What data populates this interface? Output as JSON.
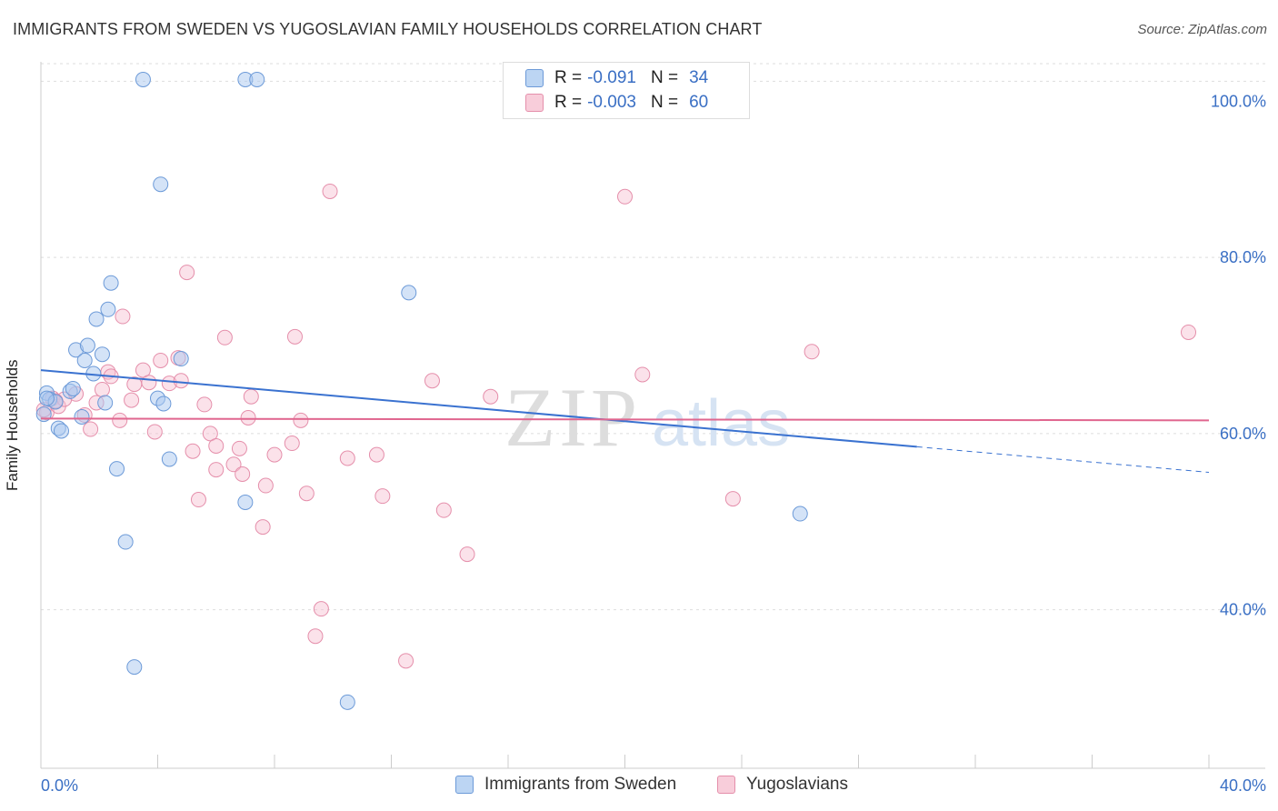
{
  "header": {
    "title": "IMMIGRANTS FROM SWEDEN VS YUGOSLAVIAN FAMILY HOUSEHOLDS CORRELATION CHART",
    "source": "Source: ZipAtlas.com"
  },
  "watermark": {
    "zip": "ZIP",
    "atlas": "atlas"
  },
  "legend": {
    "rows": [
      {
        "r_label": "R =",
        "r_value": "-0.091",
        "n_label": "N =",
        "n_value": "34"
      },
      {
        "r_label": "R =",
        "r_value": "-0.003",
        "n_label": "N =",
        "n_value": "60"
      }
    ]
  },
  "bottom_legend": {
    "series_a": "Immigrants from Sweden",
    "series_b": "Yugoslavians"
  },
  "chart_data": {
    "type": "scatter",
    "title": "IMMIGRANTS FROM SWEDEN VS YUGOSLAVIAN FAMILY HOUSEHOLDS CORRELATION CHART",
    "xlabel": "",
    "ylabel": "Family Households",
    "xlim": [
      0,
      40
    ],
    "ylim": [
      22,
      102
    ],
    "x_tick_labels": [
      "0.0%",
      "40.0%"
    ],
    "y_ticks": [
      40,
      60,
      80,
      100
    ],
    "y_tick_labels": [
      "40.0%",
      "60.0%",
      "80.0%",
      "100.0%"
    ],
    "grid": true,
    "legend_position": "top-center",
    "colors": {
      "sweden_fill": "#a9c8f0",
      "sweden_stroke": "#6c9ad8",
      "sweden_line": "#3a72d0",
      "yugo_fill": "#f6bfd0",
      "yugo_stroke": "#e58fab",
      "yugo_line": "#e0668f",
      "tick_text": "#3a6fc4"
    },
    "series": [
      {
        "name": "Immigrants from Sweden",
        "r": -0.091,
        "n": 34,
        "trend": {
          "x0": 0,
          "y0": 67.2,
          "x1": 30,
          "y1": 58.5,
          "dash_to_x": 40,
          "dash_to_y": 55.6
        },
        "points": [
          [
            0.1,
            62.2
          ],
          [
            0.2,
            64.6
          ],
          [
            0.3,
            63.9
          ],
          [
            0.5,
            63.6
          ],
          [
            0.6,
            60.6
          ],
          [
            0.7,
            60.3
          ],
          [
            1.0,
            64.8
          ],
          [
            1.1,
            65.1
          ],
          [
            1.2,
            69.5
          ],
          [
            1.4,
            61.9
          ],
          [
            1.5,
            68.3
          ],
          [
            1.6,
            70.0
          ],
          [
            1.8,
            66.8
          ],
          [
            1.9,
            73.0
          ],
          [
            2.1,
            69.0
          ],
          [
            2.2,
            63.5
          ],
          [
            2.3,
            74.1
          ],
          [
            2.4,
            77.1
          ],
          [
            2.6,
            56.0
          ],
          [
            2.9,
            47.7
          ],
          [
            3.2,
            33.5
          ],
          [
            3.5,
            100.2
          ],
          [
            4.0,
            64.0
          ],
          [
            4.1,
            88.3
          ],
          [
            4.2,
            63.4
          ],
          [
            4.4,
            57.1
          ],
          [
            4.8,
            68.5
          ],
          [
            7.0,
            100.2
          ],
          [
            7.4,
            100.2
          ],
          [
            7.0,
            52.2
          ],
          [
            10.5,
            29.5
          ],
          [
            12.6,
            76.0
          ],
          [
            26.0,
            50.9
          ],
          [
            0.2,
            64.0
          ]
        ]
      },
      {
        "name": "Yugoslavians",
        "r": -0.003,
        "n": 60,
        "trend": {
          "x0": 0,
          "y0": 61.7,
          "x1": 40,
          "y1": 61.5
        },
        "points": [
          [
            0.2,
            62.4
          ],
          [
            0.4,
            64.0
          ],
          [
            0.6,
            63.1
          ],
          [
            0.8,
            63.9
          ],
          [
            1.2,
            64.5
          ],
          [
            1.5,
            62.1
          ],
          [
            1.7,
            60.5
          ],
          [
            1.9,
            63.5
          ],
          [
            2.1,
            65.0
          ],
          [
            2.3,
            67.0
          ],
          [
            2.4,
            66.5
          ],
          [
            2.7,
            61.5
          ],
          [
            2.8,
            73.3
          ],
          [
            3.1,
            63.8
          ],
          [
            3.2,
            65.6
          ],
          [
            3.5,
            67.2
          ],
          [
            3.7,
            65.8
          ],
          [
            3.9,
            60.2
          ],
          [
            4.1,
            68.3
          ],
          [
            4.4,
            65.7
          ],
          [
            4.7,
            68.6
          ],
          [
            4.8,
            66.0
          ],
          [
            5.0,
            78.3
          ],
          [
            5.2,
            58.0
          ],
          [
            5.4,
            52.5
          ],
          [
            5.6,
            63.3
          ],
          [
            5.8,
            60.0
          ],
          [
            6.0,
            58.6
          ],
          [
            6.0,
            55.9
          ],
          [
            6.3,
            70.9
          ],
          [
            6.6,
            56.5
          ],
          [
            6.8,
            58.3
          ],
          [
            6.9,
            55.4
          ],
          [
            7.1,
            61.8
          ],
          [
            7.2,
            64.2
          ],
          [
            7.6,
            49.4
          ],
          [
            7.7,
            54.1
          ],
          [
            8.0,
            57.6
          ],
          [
            8.6,
            58.9
          ],
          [
            8.7,
            71.0
          ],
          [
            8.9,
            61.5
          ],
          [
            9.1,
            53.2
          ],
          [
            9.4,
            37.0
          ],
          [
            9.6,
            40.1
          ],
          [
            9.9,
            87.5
          ],
          [
            10.5,
            57.2
          ],
          [
            11.5,
            57.6
          ],
          [
            11.7,
            52.9
          ],
          [
            12.5,
            34.2
          ],
          [
            13.4,
            66.0
          ],
          [
            13.8,
            51.3
          ],
          [
            14.6,
            46.3
          ],
          [
            15.4,
            64.2
          ],
          [
            20.0,
            86.9
          ],
          [
            20.6,
            66.7
          ],
          [
            23.7,
            52.6
          ],
          [
            26.4,
            69.3
          ],
          [
            39.3,
            71.5
          ],
          [
            0.1,
            62.7
          ],
          [
            0.5,
            63.7
          ]
        ]
      }
    ]
  }
}
